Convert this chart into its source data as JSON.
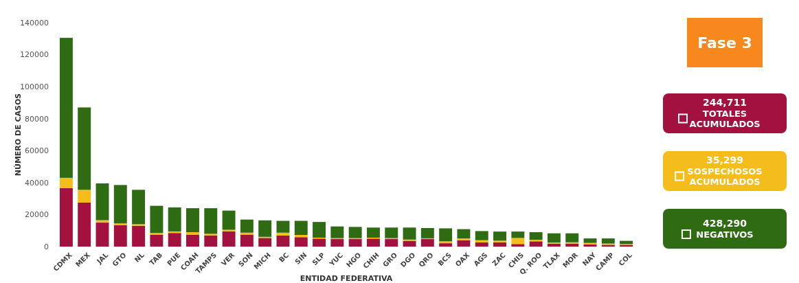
{
  "chart_data": {
    "type": "bar",
    "stacked": true,
    "xlabel": "ENTIDAD FEDERATIVA",
    "ylabel": "NÚMERO DE CASOS",
    "categories": [
      "CDMX",
      "MEX",
      "JAL",
      "GTO",
      "NL",
      "TAB",
      "PUE",
      "COAH",
      "TAMPS",
      "VER",
      "SON",
      "MICH",
      "BC",
      "SIN",
      "SLP",
      "YUC",
      "HGO",
      "CHIH",
      "GRO",
      "DGO",
      "QRO",
      "BCS",
      "OAX",
      "AGS",
      "ZAC",
      "CHIS",
      "Q. ROO",
      "TLAX",
      "MOR",
      "NAY",
      "CAMP",
      "COL"
    ],
    "series": [
      {
        "name": "TOTALES ACUMULADOS",
        "color": "#a3123f",
        "values": [
          36500,
          27500,
          15000,
          13500,
          13000,
          7500,
          8500,
          7500,
          7000,
          9500,
          7500,
          5400,
          6900,
          5900,
          5000,
          4700,
          4700,
          5000,
          4700,
          3600,
          4700,
          2100,
          4000,
          2600,
          2600,
          1600,
          3300,
          1900,
          1900,
          1400,
          1100,
          1100
        ]
      },
      {
        "name": "SOSPECHOSOS ACUMULADOS",
        "color": "#f5bd1b",
        "values": [
          6500,
          8000,
          1500,
          1000,
          1000,
          1000,
          1000,
          1500,
          1000,
          1000,
          1200,
          700,
          1800,
          1400,
          600,
          600,
          600,
          600,
          600,
          800,
          500,
          1200,
          1100,
          1400,
          1100,
          3800,
          1000,
          700,
          800,
          900,
          800,
          500
        ]
      },
      {
        "name": "NEGATIVOS",
        "color": "#2e6b12",
        "values": [
          87500,
          51500,
          23000,
          24000,
          21500,
          17000,
          15000,
          15000,
          16000,
          12000,
          8200,
          10300,
          7400,
          8800,
          9800,
          7300,
          7000,
          6300,
          6600,
          7500,
          6400,
          8100,
          5800,
          5700,
          5700,
          4000,
          4700,
          5700,
          5600,
          2800,
          3200,
          2000
        ]
      }
    ],
    "ylim": [
      0,
      140000
    ],
    "yticks": [
      0,
      20000,
      40000,
      60000,
      80000,
      100000,
      120000,
      140000
    ],
    "legend": "right",
    "annotations": [
      "Fase 3",
      "244,711",
      "35,299",
      "428,290"
    ]
  }
}
